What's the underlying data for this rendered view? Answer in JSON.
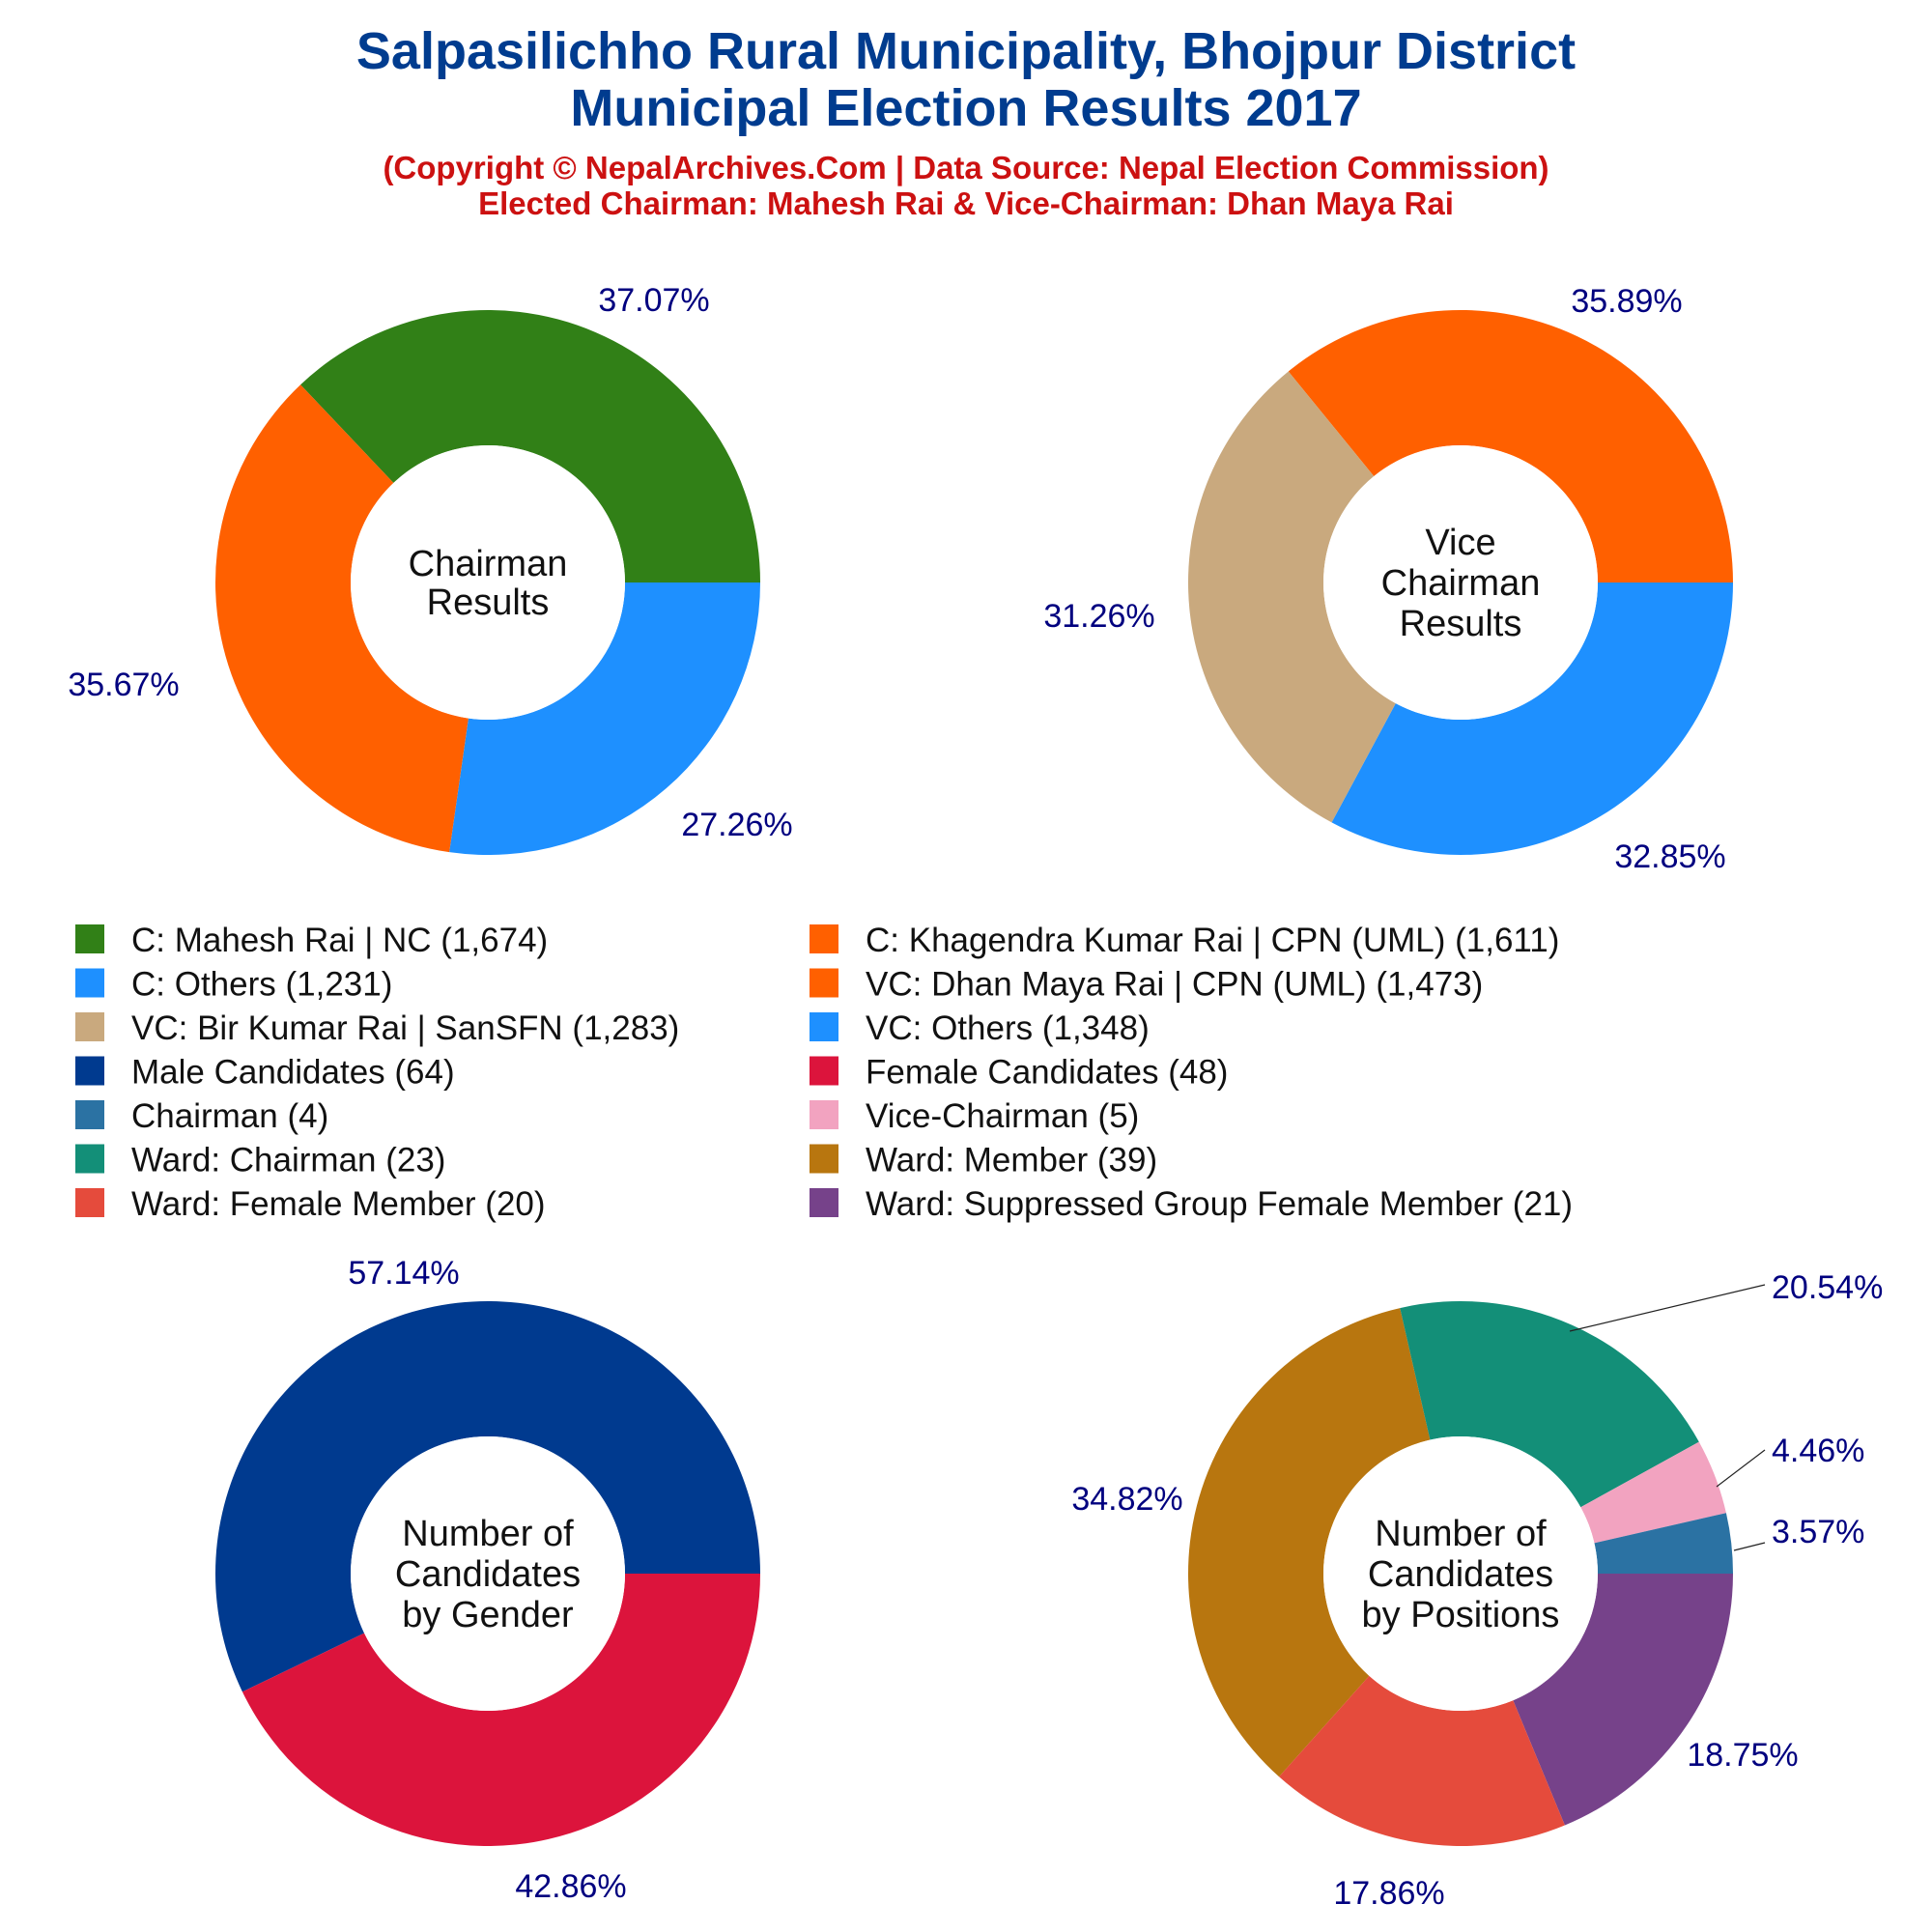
{
  "header": {
    "title_line1": "Salpasilichho Rural Municipality, Bhojpur District",
    "title_line2": "Municipal Election Results 2017",
    "subtitle_line1": "(Copyright © NepalArchives.Com | Data Source: Nepal Election Commission)",
    "subtitle_line2": "Elected Chairman: Mahesh Rai & Vice-Chairman: Dhan Maya Rai",
    "title_color": "#003c8f",
    "subtitle_color": "#cc1111"
  },
  "legend": [
    {
      "label": "C: Mahesh Rai | NC (1,674)",
      "color": "#318017"
    },
    {
      "label": "C: Khagendra Kumar Rai | CPN (UML) (1,611)",
      "color": "#ff6000"
    },
    {
      "label": "C: Others (1,231)",
      "color": "#1e90ff"
    },
    {
      "label": "VC: Dhan Maya Rai | CPN (UML) (1,473)",
      "color": "#ff6000"
    },
    {
      "label": "VC: Bir Kumar Rai | SanSFN (1,283)",
      "color": "#c9a97e"
    },
    {
      "label": "VC: Others (1,348)",
      "color": "#1e90ff"
    },
    {
      "label": "Male Candidates (64)",
      "color": "#003a8f"
    },
    {
      "label": "Female Candidates (48)",
      "color": "#dc143c"
    },
    {
      "label": "Chairman (4)",
      "color": "#2b72a3"
    },
    {
      "label": "Vice-Chairman (5)",
      "color": "#f2a3c0"
    },
    {
      "label": "Ward: Chairman (23)",
      "color": "#138f78"
    },
    {
      "label": "Ward: Member (39)",
      "color": "#b8760f"
    },
    {
      "label": "Ward: Female Member (20)",
      "color": "#e54b3c"
    },
    {
      "label": "Ward: Suppressed Group Female Member (21)",
      "color": "#76428a"
    }
  ],
  "chart_data": [
    {
      "type": "pie",
      "center_label": [
        "Chairman",
        "Results"
      ],
      "slices": [
        {
          "name": "C: Mahesh Rai | NC",
          "value": 1674,
          "label": "37.07%",
          "color": "#318017"
        },
        {
          "name": "C: Others",
          "value": 1231,
          "label": "27.26%",
          "color": "#1e90ff"
        },
        {
          "name": "C: Khagendra Kumar Rai | CPN (UML)",
          "value": 1611,
          "label": "35.67%",
          "color": "#ff6000"
        }
      ]
    },
    {
      "type": "pie",
      "center_label": [
        "Vice",
        "Chairman",
        "Results"
      ],
      "slices": [
        {
          "name": "VC: Dhan Maya Rai | CPN (UML)",
          "value": 1473,
          "label": "35.89%",
          "color": "#ff6000"
        },
        {
          "name": "VC: Others",
          "value": 1348,
          "label": "32.85%",
          "color": "#1e90ff"
        },
        {
          "name": "VC: Bir Kumar Rai | SanSFN",
          "value": 1283,
          "label": "31.26%",
          "color": "#c9a97e"
        }
      ]
    },
    {
      "type": "pie",
      "center_label": [
        "Number of",
        "Candidates",
        "by Gender"
      ],
      "slices": [
        {
          "name": "Male Candidates",
          "value": 64,
          "label": "57.14%",
          "color": "#003a8f"
        },
        {
          "name": "Female Candidates",
          "value": 48,
          "label": "42.86%",
          "color": "#dc143c"
        }
      ]
    },
    {
      "type": "pie",
      "center_label": [
        "Number of",
        "Candidates",
        "by Positions"
      ],
      "slices": [
        {
          "name": "Ward: Member",
          "value": 39,
          "label": "34.82%",
          "color": "#b8760f"
        },
        {
          "name": "Ward: Chairman",
          "value": 23,
          "label": "20.54%",
          "color": "#138f78"
        },
        {
          "name": "Vice-Chairman",
          "value": 5,
          "label": "4.46%",
          "color": "#f2a3c0"
        },
        {
          "name": "Chairman",
          "value": 4,
          "label": "3.57%",
          "color": "#2b72a3"
        },
        {
          "name": "Ward: Suppressed Group Female Member",
          "value": 21,
          "label": "18.75%",
          "color": "#76428a"
        },
        {
          "name": "Ward: Female Member",
          "value": 20,
          "label": "17.86%",
          "color": "#e54b3c"
        }
      ]
    }
  ]
}
